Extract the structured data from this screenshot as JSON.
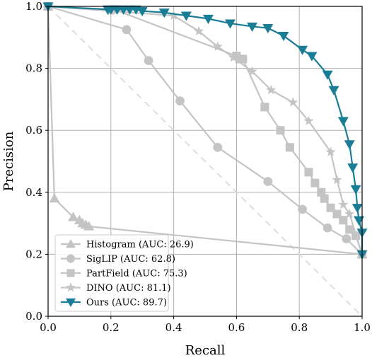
{
  "chart_data": {
    "type": "line",
    "xlabel": "Recall",
    "ylabel": "Precision",
    "xlim": [
      0,
      1
    ],
    "ylim": [
      0,
      1
    ],
    "xticks": [
      "0.0",
      "0.2",
      "0.4",
      "0.6",
      "0.8",
      "1.0"
    ],
    "yticks": [
      "0.0",
      "0.2",
      "0.4",
      "0.6",
      "0.8",
      "1.0"
    ],
    "grid": true,
    "legend_position": "bottom-left",
    "diagonal": {
      "from": [
        0,
        1
      ],
      "to": [
        1,
        0
      ],
      "style": "dashed",
      "color": "#dddddd"
    },
    "series": [
      {
        "name": "Histogram (AUC: 26.9)",
        "marker": "triangle-up",
        "color": "#c4c4c4",
        "points": [
          [
            0.0,
            1.0
          ],
          [
            0.02,
            0.38
          ],
          [
            0.08,
            0.32
          ],
          [
            0.1,
            0.31
          ],
          [
            0.11,
            0.3
          ],
          [
            0.12,
            0.295
          ],
          [
            0.13,
            0.29
          ],
          [
            1.0,
            0.2
          ]
        ]
      },
      {
        "name": "SigLIP (AUC: 62.8)",
        "marker": "circle",
        "color": "#c4c4c4",
        "points": [
          [
            0.0,
            1.0
          ],
          [
            0.25,
            0.925
          ],
          [
            0.32,
            0.825
          ],
          [
            0.42,
            0.695
          ],
          [
            0.54,
            0.545
          ],
          [
            0.7,
            0.435
          ],
          [
            0.81,
            0.345
          ],
          [
            0.89,
            0.285
          ],
          [
            0.95,
            0.25
          ],
          [
            1.0,
            0.2
          ]
        ]
      },
      {
        "name": "PartField (AUC: 75.3)",
        "marker": "square",
        "color": "#c4c4c4",
        "points": [
          [
            0.0,
            1.0
          ],
          [
            0.21,
            0.99
          ],
          [
            0.6,
            0.84
          ],
          [
            0.61,
            0.83
          ],
          [
            0.62,
            0.83
          ],
          [
            0.69,
            0.675
          ],
          [
            0.74,
            0.6
          ],
          [
            0.77,
            0.545
          ],
          [
            0.83,
            0.465
          ],
          [
            0.85,
            0.43
          ],
          [
            0.87,
            0.4
          ],
          [
            0.88,
            0.38
          ],
          [
            0.9,
            0.35
          ],
          [
            0.92,
            0.33
          ],
          [
            0.94,
            0.31
          ],
          [
            0.96,
            0.28
          ],
          [
            0.98,
            0.26
          ],
          [
            1.0,
            0.2
          ]
        ]
      },
      {
        "name": "DINO (AUC: 81.1)",
        "marker": "star",
        "color": "#c4c4c4",
        "points": [
          [
            0.0,
            1.0
          ],
          [
            0.2,
            0.985
          ],
          [
            0.4,
            0.97
          ],
          [
            0.48,
            0.92
          ],
          [
            0.54,
            0.87
          ],
          [
            0.59,
            0.835
          ],
          [
            0.65,
            0.79
          ],
          [
            0.71,
            0.73
          ],
          [
            0.78,
            0.69
          ],
          [
            0.83,
            0.63
          ],
          [
            0.9,
            0.53
          ],
          [
            0.92,
            0.44
          ],
          [
            0.94,
            0.36
          ],
          [
            0.96,
            0.33
          ],
          [
            1.0,
            0.2
          ]
        ]
      },
      {
        "name": "Ours (AUC: 89.7)",
        "marker": "triangle-down",
        "color": "#1a7d96",
        "points": [
          [
            0.0,
            1.0
          ],
          [
            0.19,
            0.99
          ],
          [
            0.2,
            0.99
          ],
          [
            0.22,
            0.99
          ],
          [
            0.24,
            0.99
          ],
          [
            0.26,
            0.99
          ],
          [
            0.28,
            0.99
          ],
          [
            0.3,
            0.985
          ],
          [
            0.37,
            0.98
          ],
          [
            0.44,
            0.97
          ],
          [
            0.51,
            0.96
          ],
          [
            0.58,
            0.945
          ],
          [
            0.65,
            0.935
          ],
          [
            0.7,
            0.93
          ],
          [
            0.75,
            0.905
          ],
          [
            0.81,
            0.86
          ],
          [
            0.84,
            0.84
          ],
          [
            0.89,
            0.78
          ],
          [
            0.91,
            0.73
          ],
          [
            0.94,
            0.63
          ],
          [
            0.96,
            0.555
          ],
          [
            0.97,
            0.48
          ],
          [
            0.98,
            0.41
          ],
          [
            0.985,
            0.35
          ],
          [
            0.99,
            0.31
          ],
          [
            1.0,
            0.27
          ],
          [
            1.0,
            0.2
          ]
        ]
      }
    ]
  }
}
